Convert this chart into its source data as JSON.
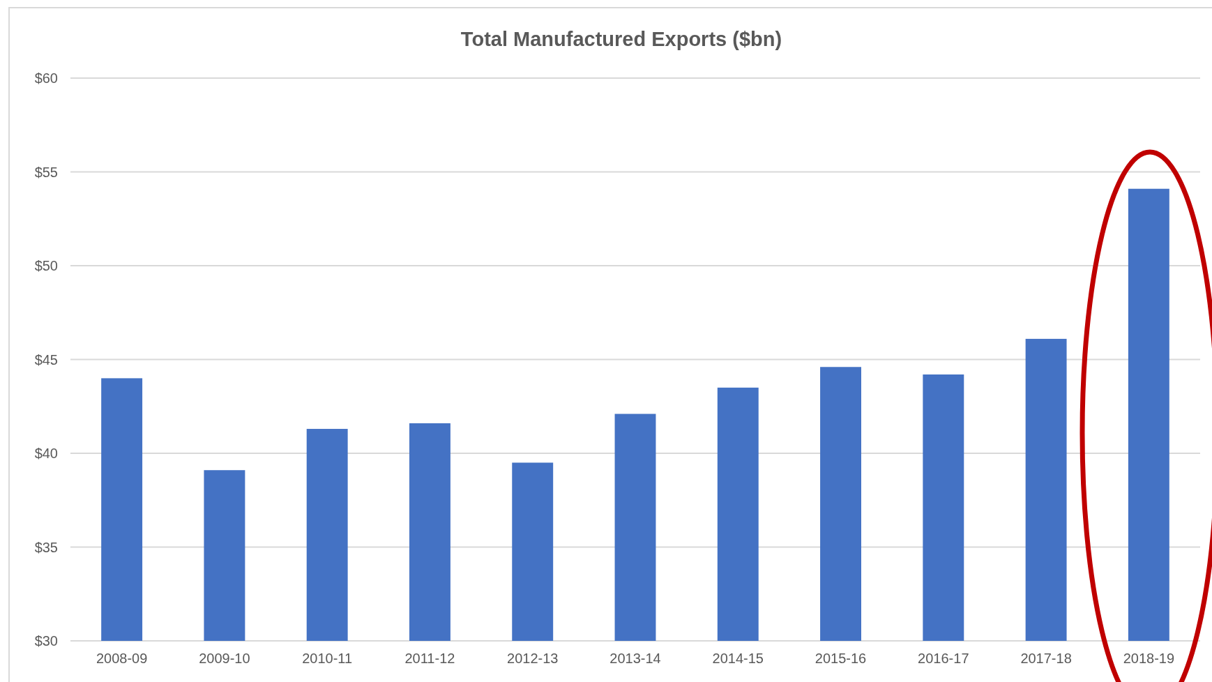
{
  "chart_data": {
    "type": "bar",
    "title": "Total Manufactured Exports ($bn)",
    "categories": [
      "2008-09",
      "2009-10",
      "2010-11",
      "2011-12",
      "2012-13",
      "2013-14",
      "2014-15",
      "2015-16",
      "2016-17",
      "2017-18",
      "2018-19"
    ],
    "values": [
      44.0,
      39.1,
      41.3,
      41.6,
      39.5,
      42.1,
      43.5,
      44.6,
      44.2,
      46.1,
      54.1
    ],
    "color": "#4472c4",
    "ylim": [
      30,
      60
    ],
    "yticks": [
      {
        "value": 30,
        "label": "$30"
      },
      {
        "value": 35,
        "label": "$35"
      },
      {
        "value": 40,
        "label": "$40"
      },
      {
        "value": 45,
        "label": "$45"
      },
      {
        "value": 50,
        "label": "$50"
      },
      {
        "value": 55,
        "label": "$55"
      },
      {
        "value": 60,
        "label": "$60"
      }
    ],
    "grid": "y"
  }
}
